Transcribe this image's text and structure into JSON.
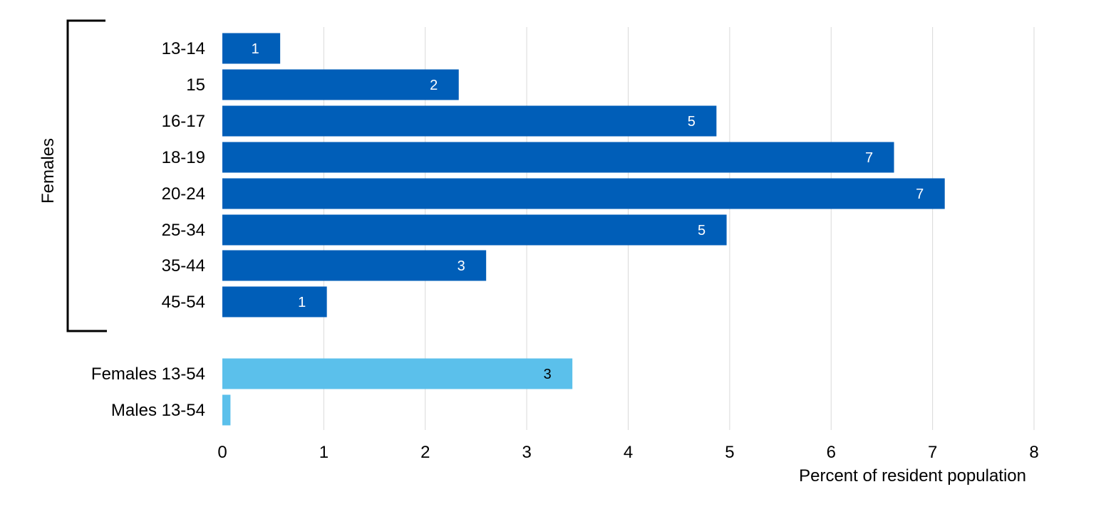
{
  "chart_data": {
    "type": "bar",
    "orientation": "horizontal",
    "xlabel": "Percent of resident population",
    "xlim": [
      0,
      8
    ],
    "xticks": [
      "0",
      "1",
      "2",
      "3",
      "4",
      "5",
      "6",
      "7",
      "8"
    ],
    "grid": "vertical",
    "group_label": "Females",
    "colors": {
      "primary": "#005EB8",
      "summary": "#5BC0EB",
      "grid": "#D9D9D9"
    },
    "categories": [
      "13-14",
      "15",
      "16-17",
      "18-19",
      "20-24",
      "25-34",
      "35-44",
      "45-54",
      "Females 13-54",
      "Males 13-54"
    ],
    "values": [
      0.57,
      2.33,
      4.87,
      6.62,
      7.12,
      4.97,
      2.6,
      1.03,
      3.45,
      0.08
    ],
    "data_labels": [
      "1",
      "2",
      "5",
      "7",
      "7",
      "5",
      "3",
      "1",
      "3",
      ""
    ],
    "bar_styles": [
      "primary",
      "primary",
      "primary",
      "primary",
      "primary",
      "primary",
      "primary",
      "primary",
      "summary",
      "summary"
    ]
  }
}
